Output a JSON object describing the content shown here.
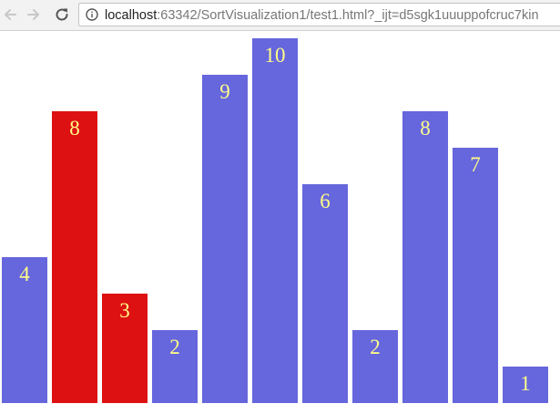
{
  "browser": {
    "url_host": "localhost",
    "url_rest": ":63342/SortVisualization1/test1.html?_ijt=d5sgk1uuuppofcruc7kin"
  },
  "icons": {
    "back": "back-arrow-icon",
    "forward": "forward-arrow-icon",
    "reload": "reload-icon",
    "info": "info-icon"
  },
  "colors": {
    "default_bar": "#6666dd",
    "highlight_bar": "#dd1111",
    "value_text": "#ffff88"
  },
  "bars": [
    {
      "value": 4,
      "highlighted": false
    },
    {
      "value": 8,
      "highlighted": true
    },
    {
      "value": 3,
      "highlighted": true
    },
    {
      "value": 2,
      "highlighted": false
    },
    {
      "value": 9,
      "highlighted": false
    },
    {
      "value": 10,
      "highlighted": false
    },
    {
      "value": 6,
      "highlighted": false
    },
    {
      "value": 2,
      "highlighted": false
    },
    {
      "value": 8,
      "highlighted": false
    },
    {
      "value": 7,
      "highlighted": false
    },
    {
      "value": 1,
      "highlighted": false
    }
  ]
}
